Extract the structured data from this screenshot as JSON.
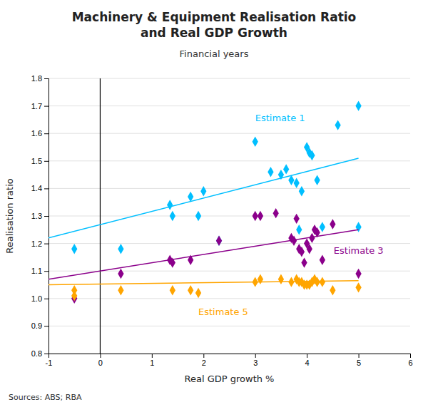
{
  "chart_data": {
    "type": "scatter",
    "title": "Machinery & Equipment Realisation Ratio\nand Real GDP Growth",
    "subtitle": "Financial years",
    "xlabel": "Real GDP growth %",
    "ylabel": "Realisation ratio",
    "source": "Sources: ABS; RBA",
    "xlim": [
      -1,
      6
    ],
    "ylim": [
      0.8,
      1.8
    ],
    "xticks": [
      -1,
      0,
      1,
      2,
      3,
      4,
      5,
      6
    ],
    "yticks": [
      0.8,
      0.9,
      {
        "value": 1.0,
        "label": "1.0"
      },
      1.1,
      1.2,
      1.3,
      1.4,
      1.5,
      1.6,
      1.7,
      1.8
    ],
    "grid": "y",
    "vline_x": 0,
    "series": [
      {
        "name": "Estimate 1",
        "color": "#00BFFF",
        "marker": "diamond",
        "x": [
          -0.5,
          0.4,
          1.35,
          1.4,
          1.75,
          1.9,
          2.0,
          2.3,
          3.0,
          3.3,
          3.5,
          3.6,
          3.7,
          3.8,
          3.85,
          3.9,
          4.0,
          4.05,
          4.1,
          4.2,
          4.3,
          4.6,
          5.0,
          5.0
        ],
        "values": [
          1.18,
          1.18,
          1.34,
          1.3,
          1.37,
          1.3,
          1.39,
          1.21,
          1.57,
          1.46,
          1.45,
          1.47,
          1.43,
          1.42,
          1.25,
          1.39,
          1.55,
          1.53,
          1.52,
          1.43,
          1.26,
          1.63,
          1.7,
          1.26
        ],
        "trend_x": [
          -1,
          5
        ],
        "trend_y": [
          1.22,
          1.51
        ],
        "label_x": 3.0,
        "label_y": 1.645
      },
      {
        "name": "Estimate 3",
        "color": "#8B008B",
        "marker": "diamond",
        "x": [
          -0.5,
          0.4,
          1.35,
          1.4,
          1.75,
          2.3,
          3.0,
          3.1,
          3.4,
          3.7,
          3.75,
          3.8,
          3.85,
          3.9,
          3.95,
          4.0,
          4.05,
          4.1,
          4.15,
          4.2,
          4.3,
          4.5,
          5.0
        ],
        "values": [
          1.0,
          1.09,
          1.14,
          1.13,
          1.14,
          1.21,
          1.3,
          1.3,
          1.31,
          1.22,
          1.21,
          1.29,
          1.18,
          1.17,
          1.13,
          1.2,
          1.18,
          1.22,
          1.25,
          1.24,
          1.14,
          1.27,
          1.09
        ],
        "trend_x": [
          -1,
          5
        ],
        "trend_y": [
          1.07,
          1.25
        ],
        "label_x": 4.52,
        "label_y": 1.175
      },
      {
        "name": "Estimate 5",
        "color": "#FFA500",
        "marker": "diamond",
        "x": [
          -0.5,
          -0.5,
          0.4,
          1.4,
          1.75,
          1.9,
          3.0,
          3.1,
          3.5,
          3.7,
          3.8,
          3.85,
          3.9,
          3.95,
          4.0,
          4.05,
          4.1,
          4.15,
          4.2,
          4.3,
          4.5,
          5.0
        ],
        "values": [
          1.03,
          1.01,
          1.03,
          1.03,
          1.03,
          1.02,
          1.06,
          1.07,
          1.07,
          1.06,
          1.07,
          1.06,
          1.06,
          1.05,
          1.05,
          1.05,
          1.06,
          1.07,
          1.06,
          1.06,
          1.03,
          1.04
        ],
        "trend_x": [
          -1,
          5
        ],
        "trend_y": [
          1.05,
          1.065
        ],
        "label_x": 1.9,
        "label_y": 0.965
      }
    ]
  }
}
